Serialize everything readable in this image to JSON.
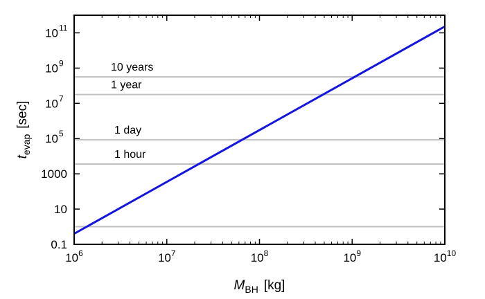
{
  "chart_data": {
    "type": "line",
    "title": "",
    "xlabel": {
      "main": "M",
      "sub": "BH",
      "unit": "[kg]"
    },
    "ylabel": {
      "main": "t",
      "sub": "evap",
      "unit": "[sec]"
    },
    "x_scale": "log",
    "y_scale": "log",
    "xlim": [
      1000000,
      10000000000
    ],
    "ylim": [
      0.1,
      1000000000000
    ],
    "grid": false,
    "x_ticks": [
      {
        "value": 1000000,
        "base": "10",
        "exp": "6"
      },
      {
        "value": 10000000,
        "base": "10",
        "exp": "7"
      },
      {
        "value": 100000000,
        "base": "10",
        "exp": "8"
      },
      {
        "value": 1000000000,
        "base": "10",
        "exp": "9"
      },
      {
        "value": 10000000000,
        "base": "10",
        "exp": "10"
      }
    ],
    "y_ticks": [
      {
        "value": 0.1,
        "base": "0.1",
        "exp": ""
      },
      {
        "value": 10,
        "base": "10",
        "exp": ""
      },
      {
        "value": 1000,
        "base": "1000",
        "exp": ""
      },
      {
        "value": 100000,
        "base": "10",
        "exp": "5"
      },
      {
        "value": 10000000,
        "base": "10",
        "exp": "7"
      },
      {
        "value": 1000000000,
        "base": "10",
        "exp": "9"
      },
      {
        "value": 100000000000,
        "base": "10",
        "exp": "11"
      }
    ],
    "series": [
      {
        "color": "#1515e0",
        "x": [
          1000000,
          10000000000
        ],
        "y": [
          0.4,
          230000000000
        ]
      }
    ],
    "reference_lines": [
      {
        "label": "10 years",
        "y": 315000000
      },
      {
        "label": "1 year",
        "y": 31500000
      },
      {
        "label": "1 day",
        "y": 86400
      },
      {
        "label": "1 hour",
        "y": 3600
      },
      {
        "label": "",
        "y": 1
      }
    ],
    "reference_line_color": "#c0c0c0"
  }
}
